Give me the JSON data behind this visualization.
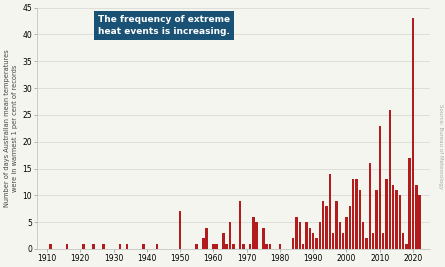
{
  "years": [
    1910,
    1911,
    1912,
    1913,
    1914,
    1915,
    1916,
    1917,
    1918,
    1919,
    1920,
    1921,
    1922,
    1923,
    1924,
    1925,
    1926,
    1927,
    1928,
    1929,
    1930,
    1931,
    1932,
    1933,
    1934,
    1935,
    1936,
    1937,
    1938,
    1939,
    1940,
    1941,
    1942,
    1943,
    1944,
    1945,
    1946,
    1947,
    1948,
    1949,
    1950,
    1951,
    1952,
    1953,
    1954,
    1955,
    1956,
    1957,
    1958,
    1959,
    1960,
    1961,
    1962,
    1963,
    1964,
    1965,
    1966,
    1967,
    1968,
    1969,
    1970,
    1971,
    1972,
    1973,
    1974,
    1975,
    1976,
    1977,
    1978,
    1979,
    1980,
    1981,
    1982,
    1983,
    1984,
    1985,
    1986,
    1987,
    1988,
    1989,
    1990,
    1991,
    1992,
    1993,
    1994,
    1995,
    1996,
    1997,
    1998,
    1999,
    2000,
    2001,
    2002,
    2003,
    2004,
    2005,
    2006,
    2007,
    2008,
    2009,
    2010,
    2011,
    2012,
    2013,
    2014,
    2015,
    2016,
    2017,
    2018,
    2019,
    2020,
    2021,
    2022
  ],
  "values": [
    0,
    1,
    0,
    0,
    0,
    0,
    1,
    0,
    0,
    0,
    0,
    1,
    0,
    0,
    1,
    0,
    0,
    1,
    0,
    0,
    0,
    0,
    1,
    0,
    1,
    0,
    0,
    0,
    0,
    1,
    0,
    0,
    0,
    1,
    0,
    0,
    0,
    0,
    0,
    0,
    7,
    0,
    0,
    0,
    0,
    1,
    0,
    2,
    4,
    0,
    1,
    1,
    0,
    3,
    1,
    5,
    1,
    0,
    9,
    1,
    0,
    1,
    6,
    5,
    0,
    4,
    1,
    1,
    0,
    0,
    1,
    0,
    0,
    0,
    2,
    6,
    5,
    1,
    5,
    4,
    3,
    2,
    5,
    9,
    8,
    14,
    3,
    9,
    5,
    3,
    6,
    8,
    13,
    13,
    11,
    5,
    2,
    16,
    3,
    11,
    23,
    3,
    13,
    26,
    12,
    11,
    10,
    3,
    1,
    17,
    43,
    12,
    10
  ],
  "bar_color": "#b31c1c",
  "bg_color": "#f5f5f0",
  "ylabel": "Number of days Australian mean temperatures\nwere in warmest 1 per cent of records",
  "ylim": [
    0,
    45
  ],
  "yticks": [
    0,
    5,
    10,
    15,
    20,
    25,
    30,
    35,
    40,
    45
  ],
  "xticks": [
    1910,
    1920,
    1930,
    1940,
    1950,
    1960,
    1970,
    1980,
    1990,
    2000,
    2010,
    2020
  ],
  "annotation_text": "The frequency of extreme\nheat events is increasing.",
  "annotation_bg": "#1a5276",
  "annotation_text_color": "#ffffff",
  "source_text": "Source: Bureau of Meteorology",
  "source_color": "#aaaaaa"
}
